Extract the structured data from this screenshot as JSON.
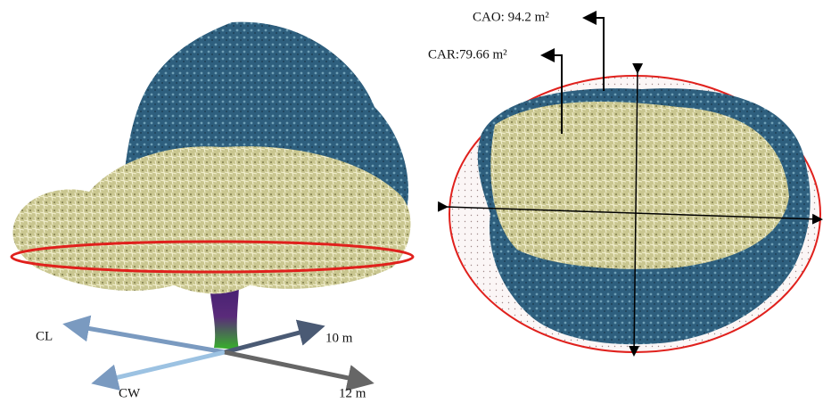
{
  "left_panel": {
    "axis_labels": {
      "cl": "CL",
      "cw": "CW",
      "length": "10 m",
      "width": "12 m"
    }
  },
  "right_panel": {
    "annotations": {
      "cao": "CAO: 94.2 m²",
      "car": "CAR:79.66 m²"
    }
  }
}
